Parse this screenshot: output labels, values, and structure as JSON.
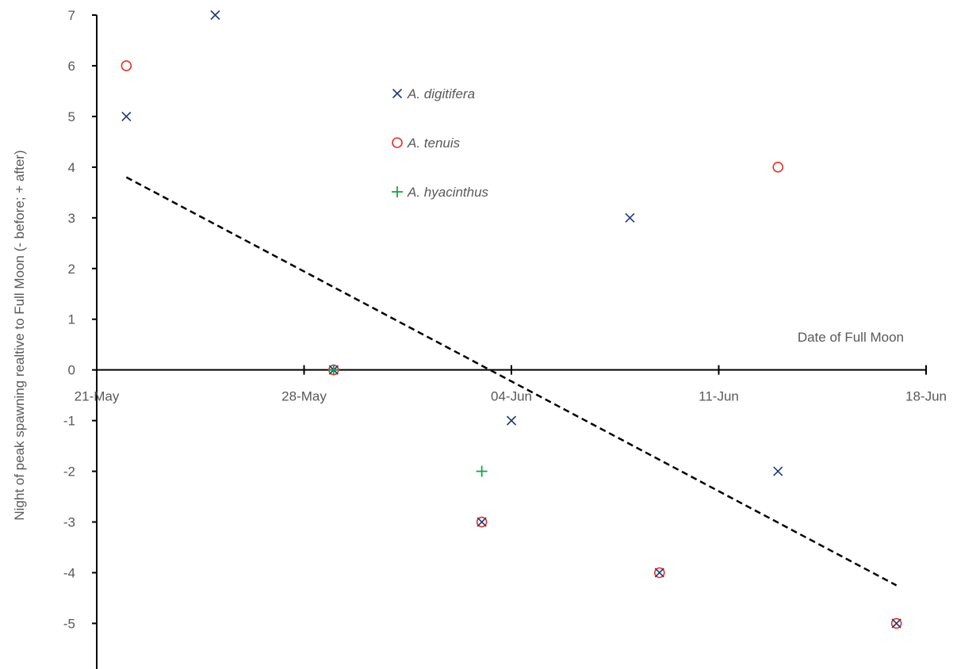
{
  "chart_data": {
    "type": "scatter",
    "ylabel": "Night of peak  spawning realtive to Full Moon (- before; + after)",
    "annotation": "Date of Full Moon",
    "x_axis": {
      "type": "date",
      "range": [
        "2019-05-21",
        "2019-06-18"
      ],
      "ticks": [
        "2019-05-21",
        "2019-05-28",
        "2019-06-04",
        "2019-06-11",
        "2019-06-18"
      ],
      "tick_labels": [
        "21-May",
        "28-May",
        "04-Jun",
        "11-Jun",
        "18-Jun"
      ],
      "crosses_y_at": 0
    },
    "y_axis": {
      "range": [
        -5.9,
        7
      ],
      "ticks": [
        7,
        6,
        5,
        4,
        3,
        2,
        1,
        0,
        -1,
        -2,
        -3,
        -4,
        -5
      ],
      "tick_labels": [
        "7",
        "6",
        "5",
        "4",
        "3",
        "2",
        "1",
        "0",
        "-1",
        "-2",
        "-3",
        "-4",
        "-5"
      ]
    },
    "grid": false,
    "legend_position": "top-center",
    "series": [
      {
        "name": "A. digitifera",
        "marker": "x",
        "color": "#1f3a7a",
        "points": [
          {
            "x": "2019-05-22",
            "y": 5
          },
          {
            "x": "2019-05-25",
            "y": 7
          },
          {
            "x": "2019-05-29",
            "y": 0
          },
          {
            "x": "2019-06-03",
            "y": -3
          },
          {
            "x": "2019-06-04",
            "y": -1
          },
          {
            "x": "2019-06-08",
            "y": 3
          },
          {
            "x": "2019-06-09",
            "y": -4
          },
          {
            "x": "2019-06-13",
            "y": -2
          },
          {
            "x": "2019-06-17",
            "y": -5
          }
        ]
      },
      {
        "name": "A. tenuis",
        "marker": "circle",
        "color": "#e8302a",
        "points": [
          {
            "x": "2019-05-22",
            "y": 6
          },
          {
            "x": "2019-05-29",
            "y": 0
          },
          {
            "x": "2019-06-03",
            "y": -3
          },
          {
            "x": "2019-06-09",
            "y": -4
          },
          {
            "x": "2019-06-13",
            "y": 4
          },
          {
            "x": "2019-06-17",
            "y": -5
          }
        ]
      },
      {
        "name": "A. hyacinthus",
        "marker": "plus",
        "color": "#1aa34a",
        "points": [
          {
            "x": "2019-05-29",
            "y": 0
          },
          {
            "x": "2019-06-03",
            "y": -2
          }
        ]
      }
    ],
    "trendline": {
      "style": "dashed",
      "color": "#000000",
      "start": {
        "x": "2019-05-22",
        "y": 3.8
      },
      "end": {
        "x": "2019-06-17",
        "y": -4.25
      }
    }
  }
}
